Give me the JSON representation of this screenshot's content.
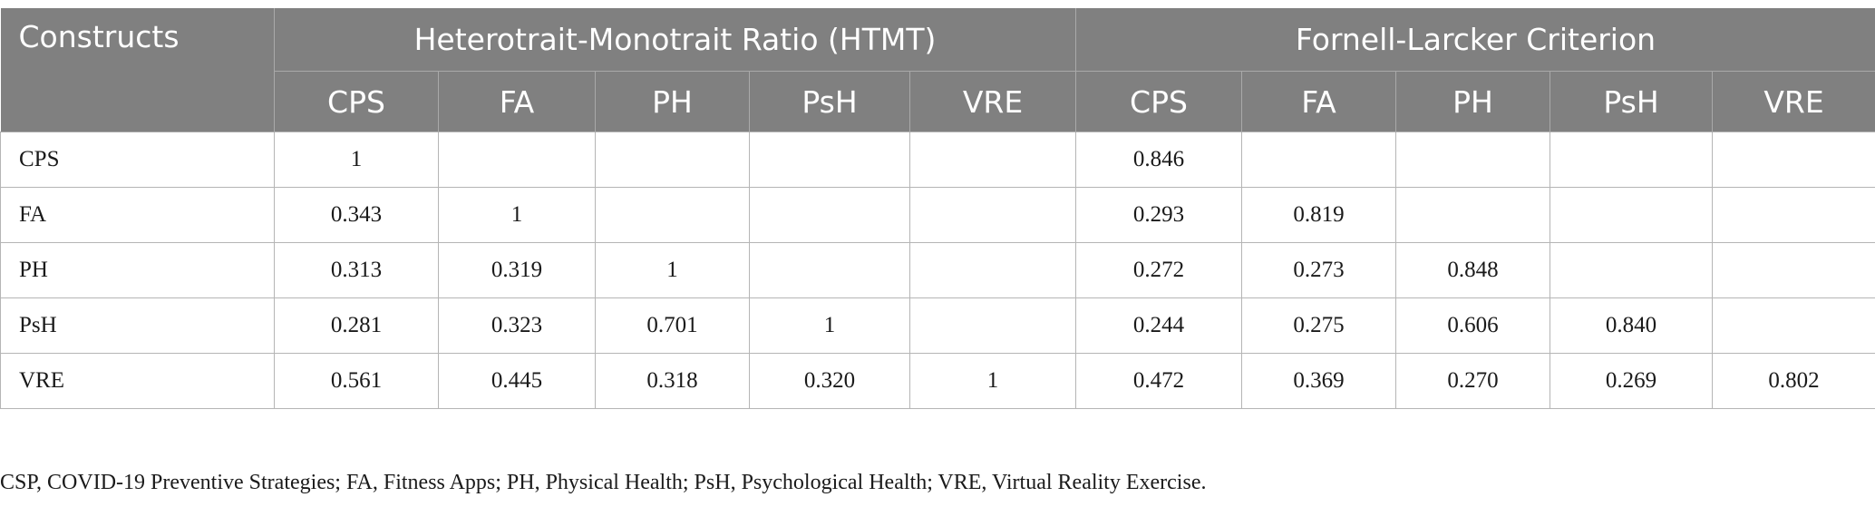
{
  "table": {
    "corner_label": "Constructs",
    "groups": [
      {
        "label": "Heterotrait-Monotrait Ratio (HTMT)"
      },
      {
        "label": "Fornell-Larcker Criterion"
      }
    ],
    "subheaders": [
      "CPS",
      "FA",
      "PH",
      "PsH",
      "VRE",
      "CPS",
      "FA",
      "PH",
      "PsH",
      "VRE"
    ],
    "rows": [
      {
        "label": "CPS",
        "cells": [
          "1",
          "",
          "",
          "",
          "",
          "0.846",
          "",
          "",
          "",
          ""
        ]
      },
      {
        "label": "FA",
        "cells": [
          "0.343",
          "1",
          "",
          "",
          "",
          "0.293",
          "0.819",
          "",
          "",
          ""
        ]
      },
      {
        "label": "PH",
        "cells": [
          "0.313",
          "0.319",
          "1",
          "",
          "",
          "0.272",
          "0.273",
          "0.848",
          "",
          ""
        ]
      },
      {
        "label": "PsH",
        "cells": [
          "0.281",
          "0.323",
          "0.701",
          "1",
          "",
          "0.244",
          "0.275",
          "0.606",
          "0.840",
          ""
        ]
      },
      {
        "label": "VRE",
        "cells": [
          "0.561",
          "0.445",
          "0.318",
          "0.320",
          "1",
          "0.472",
          "0.369",
          "0.270",
          "0.269",
          "0.802"
        ]
      }
    ]
  },
  "footnote": "CSP, COVID-19 Preventive Strategies; FA, Fitness Apps; PH, Physical Health; PsH, Psychological Health; VRE, Virtual Reality Exercise.",
  "colors": {
    "header_background": "#808080",
    "header_text": "#ffffff",
    "grid_line": "#b5b5b5"
  }
}
